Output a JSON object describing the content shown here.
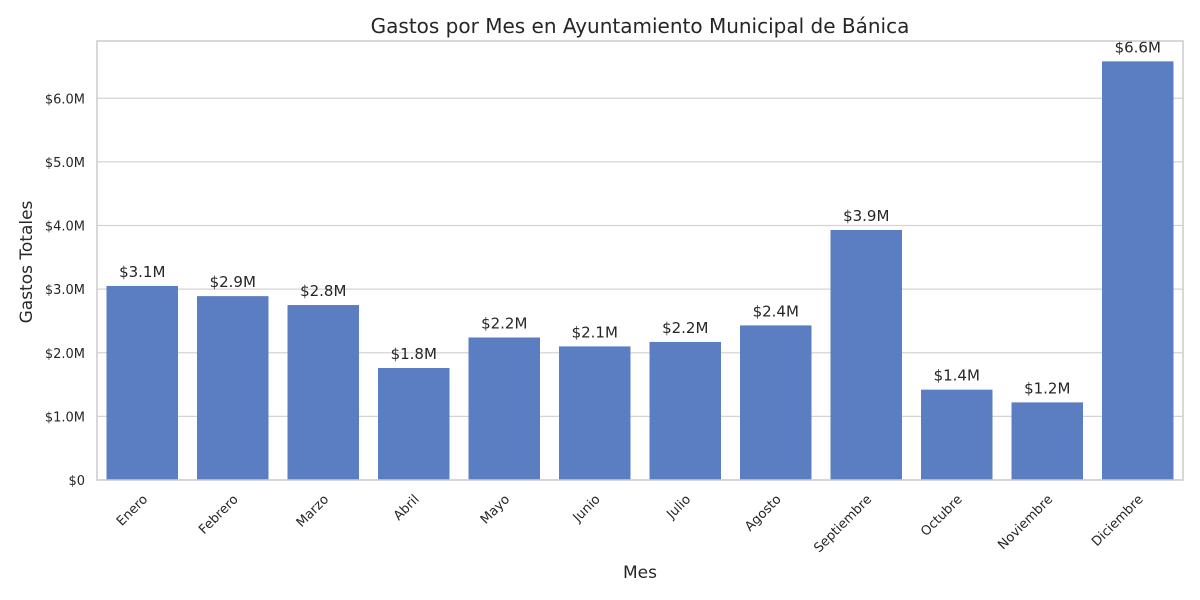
{
  "chart_data": {
    "type": "bar",
    "title": "Gastos por Mes en Ayuntamiento Municipal de Bánica",
    "xlabel": "Mes",
    "ylabel": "Gastos Totales",
    "categories": [
      "Enero",
      "Febrero",
      "Marzo",
      "Abril",
      "Mayo",
      "Junio",
      "Julio",
      "Agosto",
      "Septiembre",
      "Octubre",
      "Noviembre",
      "Diciembre"
    ],
    "values": [
      3.05,
      2.89,
      2.75,
      1.76,
      2.24,
      2.1,
      2.17,
      2.43,
      3.93,
      1.42,
      1.22,
      6.58
    ],
    "data_labels": [
      "$3.1M",
      "$2.9M",
      "$2.8M",
      "$1.8M",
      "$2.2M",
      "$2.1M",
      "$2.2M",
      "$2.4M",
      "$3.9M",
      "$1.4M",
      "$1.2M",
      "$6.6M"
    ],
    "ylim": [
      0,
      6.9
    ],
    "yticks": [
      0,
      1,
      2,
      3,
      4,
      5,
      6
    ],
    "ytick_labels": [
      "$0",
      "$1.0M",
      "$2.0M",
      "$3.0M",
      "$4.0M",
      "$5.0M",
      "$6.0M"
    ],
    "unit": "millones de dólares",
    "grid": "horizontal",
    "legend": "none",
    "colors": {
      "bar": "#5b7ec2",
      "grid": "#d4d4d4",
      "frame": "#cccccc",
      "text": "#262626"
    }
  }
}
